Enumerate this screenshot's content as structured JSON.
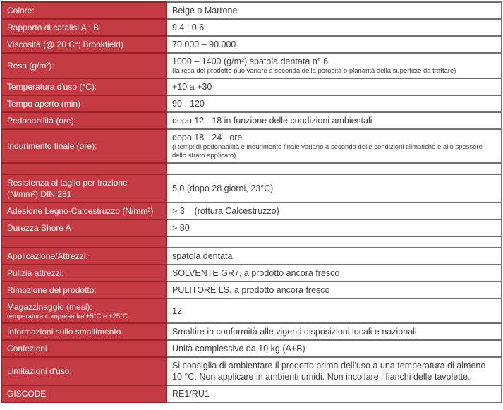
{
  "document": {
    "type": "technical-data-sheet-table",
    "language": "Italian",
    "colors": {
      "label_background": "#c43a42",
      "label_border": "#9b2027",
      "value_border": "#717171",
      "label_text": "#ffffff",
      "value_text": "#404040"
    },
    "rows": [
      {
        "label": "Colore:",
        "value": "Beige o Marrone"
      },
      {
        "label": "Rapporto di catalisi A : B",
        "value": "9,4 : 0,6"
      },
      {
        "label": "Viscosità (@ 20 C°; Brookfield)",
        "value": "70.000 – 90.000"
      },
      {
        "label": "Resa (g/m²):",
        "value": "1000 – 1400 (g/m²) spatola dentata n° 6",
        "value_note": "(la resa del prodotto può variare a seconda della porosità o planarità della superficie da trattare)"
      },
      {
        "label": "Temperatura d'uso (°C):",
        "value": "+10 a +30"
      },
      {
        "label": "Tempo aperto (min)",
        "value": "90 - 120"
      },
      {
        "label": "Pedonabilità (ore):",
        "value": "dopo 12 - 18 in funzione delle condizioni ambientali"
      },
      {
        "label": "Indurimento finale (ore):",
        "value": "dopo 18 - 24 - ore",
        "value_note": "(i tempi di pedonabilità e indurimento finale variano a seconda delle condizioni climatiche e allo spessore dello strato applicato)"
      },
      {
        "separator": true
      },
      {
        "label": "Resistenza al taglio per trazione (N/mm²) DIN 281",
        "value": "5,0 (dopo 28 giorni, 23°C)"
      },
      {
        "label": "Adesione Legno-Calcestruzzo (N/mm²)",
        "value": "> 3    (rottura Calcestruzzo)"
      },
      {
        "label": "Durezza Shore A",
        "value": "> 80"
      },
      {
        "separator": true
      },
      {
        "label": "Applicazione/Attrezzi:",
        "value": "spatola dentata"
      },
      {
        "label": "Pulizia attrezzi:",
        "value": "SOLVENTE GR7, a prodotto ancora fresco"
      },
      {
        "label": "Rimozione del prodotto:",
        "value": "PULITORE LS, a prodotto ancora fresco"
      },
      {
        "label": "Magazzinaggio (mesi):",
        "label_note": "temperatura compresa fra +5°C e +25°C",
        "value": "12"
      },
      {
        "label": "Informazioni sullo smaltimento",
        "value": "Smaltire in conformità alle vigenti disposizioni locali e nazionali"
      },
      {
        "label": "Confezioni",
        "value": "Unità complessive da 10 kg (A+B)"
      },
      {
        "label": "Limitazioni d'uso:",
        "value": "Si consiglia di ambientare il prodotto prima dell'uso a una temperatura di almeno 10 °C. Non applicare in ambienti umidi. Non incollare i fianchi delle tavolette."
      },
      {
        "label": "GISCODE",
        "value": "RE1/RU1"
      }
    ]
  }
}
